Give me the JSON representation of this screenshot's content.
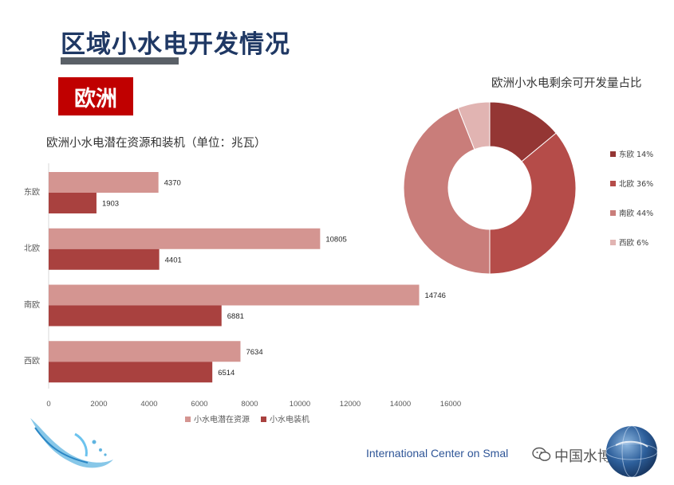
{
  "page": {
    "title": "区域小水电开发情况",
    "region_tag": "欧洲",
    "footer_text": "International Center on Smal",
    "brand_text": "中国水博览会"
  },
  "chart_data": [
    {
      "type": "bar",
      "orientation": "horizontal",
      "title": "欧洲小水电潜在资源和装机（单位：兆瓦）",
      "categories": [
        "东欧",
        "北欧",
        "南欧",
        "西欧"
      ],
      "series": [
        {
          "name": "小水电潜在资源",
          "color": "#d49591",
          "values": [
            4370,
            10805,
            14746,
            7634
          ]
        },
        {
          "name": "小水电装机",
          "color": "#a9413f",
          "values": [
            1903,
            4401,
            6881,
            6514
          ]
        }
      ],
      "xlim": [
        0,
        16000
      ],
      "xticks": [
        0,
        2000,
        4000,
        6000,
        8000,
        10000,
        12000,
        14000,
        16000
      ],
      "legend": "bottom",
      "grid": false
    },
    {
      "type": "pie",
      "style": "donut",
      "title": "欧洲小水电剩余可开发量占比",
      "labels": [
        "东欧",
        "北欧",
        "南欧",
        "西欧"
      ],
      "values": [
        14,
        36,
        44,
        6
      ],
      "value_labels": [
        "14%",
        "36%",
        "44%",
        "6%"
      ],
      "colors": [
        "#943634",
        "#b54c49",
        "#c97d7a",
        "#e1b4b2"
      ],
      "legend": "right"
    }
  ]
}
